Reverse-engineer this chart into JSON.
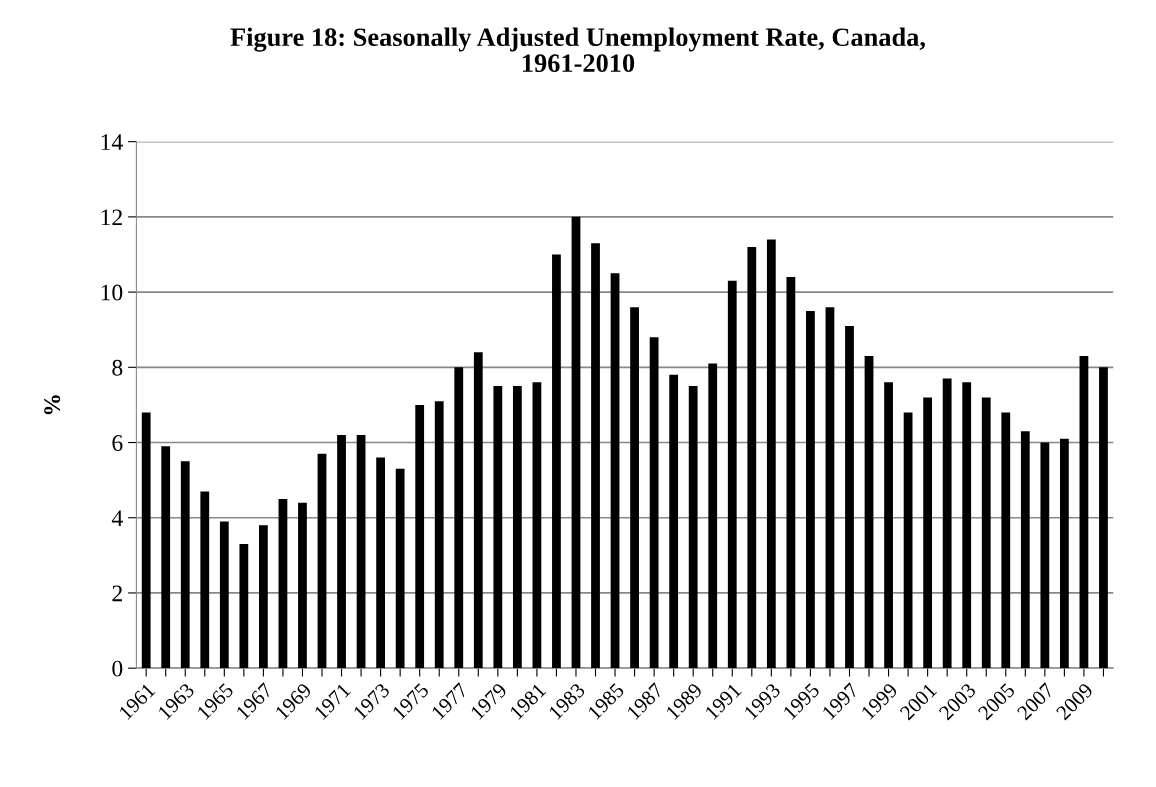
{
  "chart_data": {
    "type": "bar",
    "title": "Figure 18: Seasonally Adjusted Unemployment Rate, Canada,\n1961-2010",
    "ylabel": "%",
    "categories": [
      "1961",
      null,
      "1963",
      null,
      "1965",
      null,
      "1967",
      null,
      "1969",
      null,
      "1971",
      null,
      "1973",
      null,
      "1975",
      null,
      "1977",
      null,
      "1979",
      null,
      "1981",
      null,
      "1983",
      null,
      "1985",
      null,
      "1987",
      null,
      "1989",
      null,
      "1991",
      null,
      "1993",
      null,
      "1995",
      null,
      "1997",
      null,
      "1999",
      null,
      "2001",
      null,
      "2003",
      null,
      "2005",
      null,
      "2007",
      null,
      "2009",
      null
    ],
    "values": [
      6.8,
      5.9,
      5.5,
      4.7,
      3.9,
      3.3,
      3.8,
      4.5,
      4.4,
      5.7,
      6.2,
      6.2,
      5.6,
      5.3,
      7.0,
      7.1,
      8.0,
      8.4,
      7.5,
      7.5,
      7.6,
      11.0,
      12.0,
      11.3,
      10.5,
      9.6,
      8.8,
      7.8,
      7.5,
      8.1,
      10.3,
      11.2,
      11.4,
      10.4,
      9.5,
      9.6,
      9.1,
      8.3,
      7.6,
      6.8,
      7.2,
      7.7,
      7.6,
      7.2,
      6.8,
      6.3,
      6.0,
      6.1,
      8.3,
      8.0
    ],
    "color": "#000000",
    "ylim": [
      0,
      14
    ],
    "yticks": [
      0,
      2,
      4,
      6,
      8,
      10,
      12,
      14
    ],
    "grid": "y",
    "legend": false
  }
}
